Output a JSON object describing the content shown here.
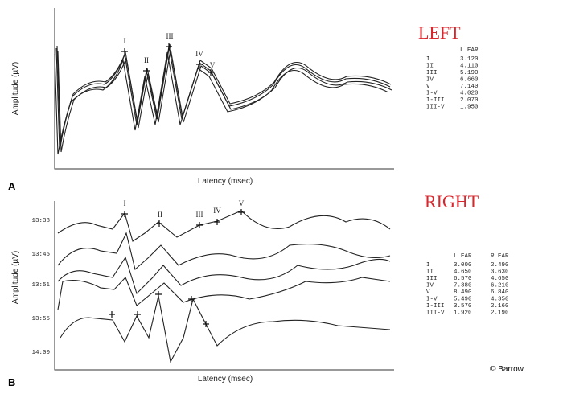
{
  "panel_a": {
    "label": "A",
    "heading": "LEFT",
    "y_axis_label": "Amplitude (µV)",
    "x_axis_label": "Latency (msec)",
    "peak_labels": [
      "I",
      "II",
      "III",
      "IV",
      "V"
    ],
    "table": {
      "columns": [
        "L EAR"
      ],
      "rows": [
        [
          "I",
          "3.120"
        ],
        [
          "II",
          "4.110"
        ],
        [
          "III",
          "5.190"
        ],
        [
          "IV",
          "6.660"
        ],
        [
          "V",
          "7.140"
        ],
        [
          "I-V",
          "4.020"
        ],
        [
          "I-III",
          "2.070"
        ],
        [
          "III-V",
          "1.950"
        ]
      ]
    }
  },
  "panel_b": {
    "label": "B",
    "heading": "RIGHT",
    "y_axis_label": "Amplitude (µV)",
    "x_axis_label": "Latency (msec)",
    "peak_labels": [
      "I",
      "II",
      "III",
      "IV",
      "V"
    ],
    "trace_times": [
      "13:38",
      "13:45",
      "13:51",
      "13:55",
      "14:00"
    ],
    "table": {
      "columns": [
        "L EAR",
        "R EAR"
      ],
      "rows": [
        [
          "I",
          "3.000",
          "2.490"
        ],
        [
          "II",
          "4.650",
          "3.630"
        ],
        [
          "III",
          "6.570",
          "4.650"
        ],
        [
          "IV",
          "7.380",
          "6.210"
        ],
        [
          "V",
          "8.490",
          "6.840"
        ],
        [
          "I-V",
          "5.490",
          "4.350"
        ],
        [
          "I-III",
          "3.570",
          "2.160"
        ],
        [
          "III-V",
          "1.920",
          "2.190"
        ]
      ]
    }
  },
  "credit": "© Barrow"
}
